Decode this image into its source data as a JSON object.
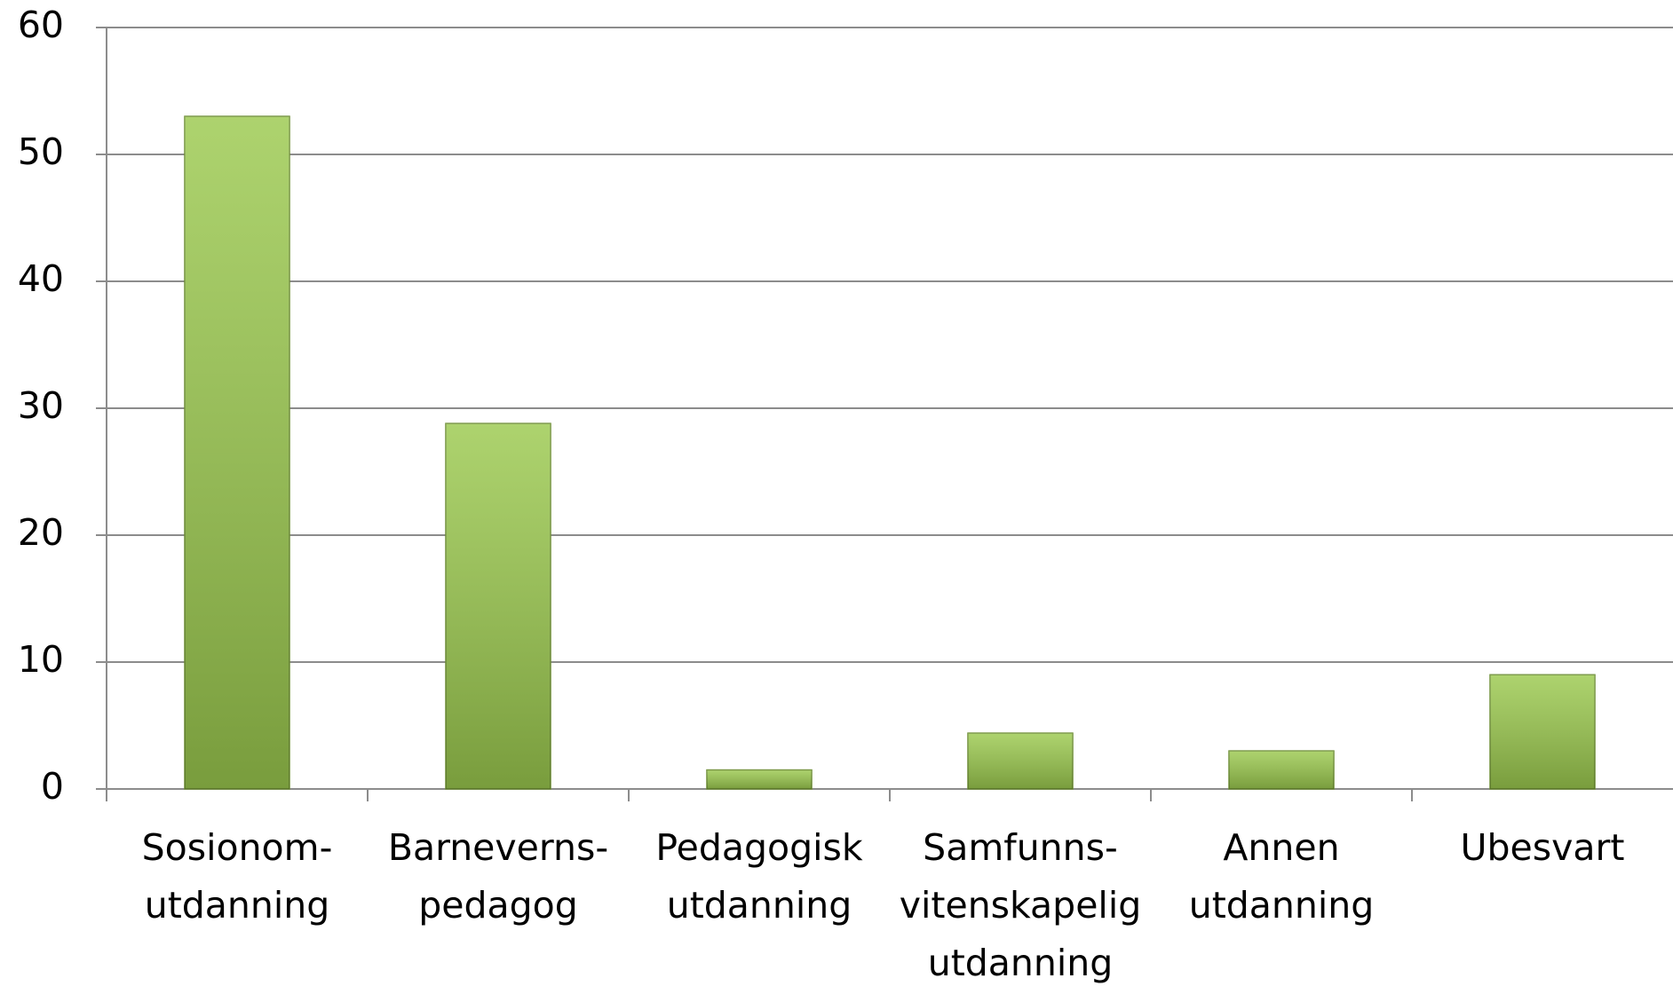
{
  "chart_data": {
    "type": "bar",
    "categories": [
      [
        "Sosionom-",
        "utdanning"
      ],
      [
        "Barneverns-",
        "pedagog"
      ],
      [
        "Pedagogisk",
        "utdanning"
      ],
      [
        "Samfunns-",
        "vitenskapelig",
        "utdanning"
      ],
      [
        "Annen",
        "utdanning"
      ],
      [
        "Ubesvart"
      ]
    ],
    "values": [
      53,
      28.8,
      1.5,
      4.4,
      3,
      9
    ],
    "color": "#9bc94e",
    "ylim": [
      0,
      60
    ],
    "yticks": [
      0,
      10,
      20,
      30,
      40,
      50,
      60
    ],
    "grid": true
  }
}
